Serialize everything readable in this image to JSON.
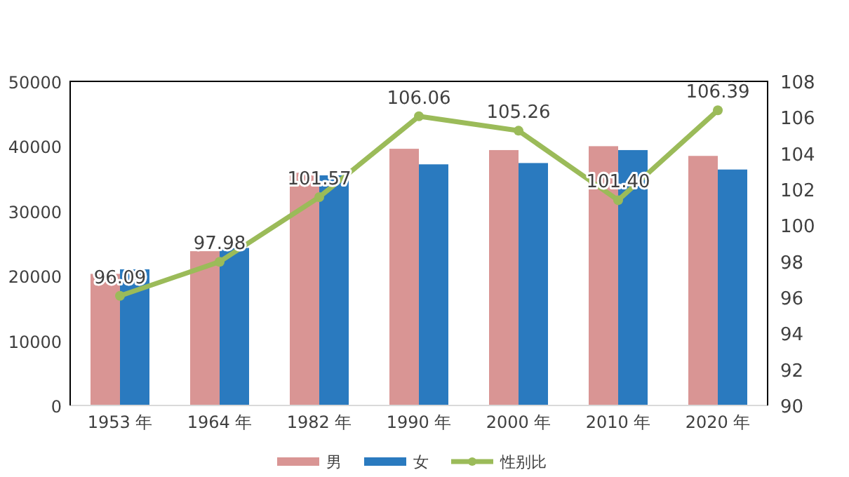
{
  "chart_data": {
    "type": "bar",
    "categories": [
      "1953 年",
      "1964 年",
      "1982 年",
      "1990 年",
      "2000 年",
      "2010 年",
      "2020 年"
    ],
    "series": [
      {
        "name": "男",
        "color": "#d99594",
        "values": [
          20300,
          23800,
          35900,
          39600,
          39400,
          40000,
          38500
        ]
      },
      {
        "name": "女",
        "color": "#2a7abf",
        "values": [
          21000,
          24300,
          35500,
          37200,
          37400,
          39400,
          36400
        ]
      },
      {
        "name": "性别比",
        "type": "line",
        "axis": "y2",
        "color": "#9bbb59",
        "marker": "circle",
        "values": [
          96.09,
          97.98,
          101.57,
          106.06,
          105.26,
          101.4,
          106.39
        ],
        "value_labels": [
          "96.09",
          "97.98",
          "101.57",
          "106.06",
          "105.26",
          "101.40",
          "106.39"
        ]
      }
    ],
    "ylim": [
      0,
      50000
    ],
    "yticks": [
      0,
      10000,
      20000,
      30000,
      40000,
      50000
    ],
    "y2lim": [
      90,
      108
    ],
    "y2ticks": [
      90,
      92,
      94,
      96,
      98,
      100,
      102,
      104,
      106,
      108
    ],
    "legend": "bottom",
    "grid": false
  }
}
